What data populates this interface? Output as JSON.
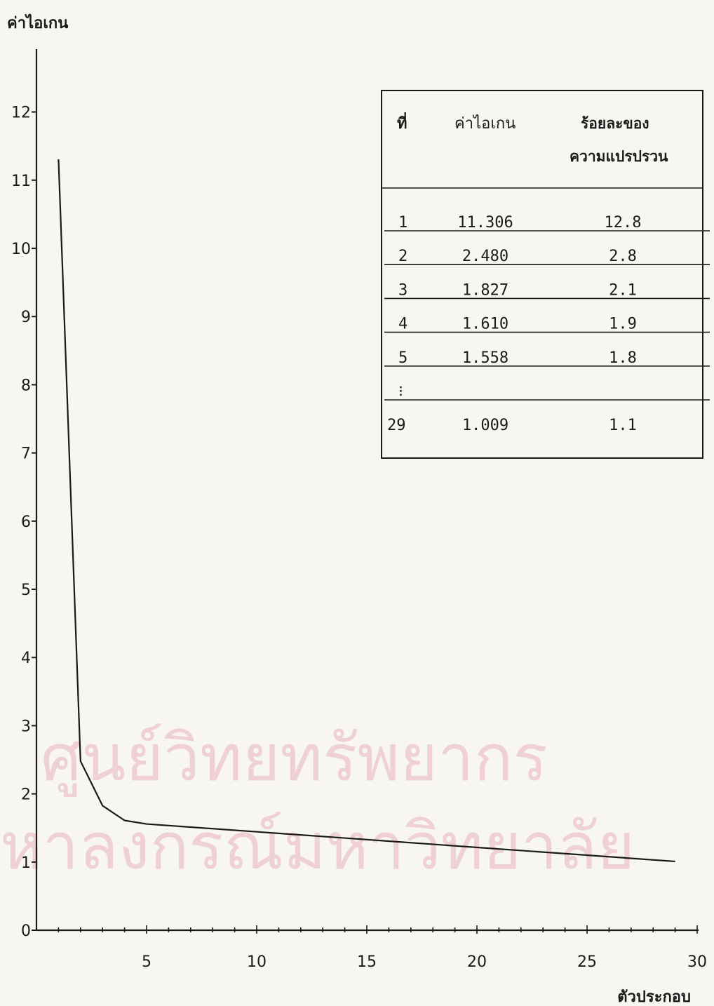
{
  "watermark": {
    "line1": "ศูนย์วิทยทรัพยากร",
    "line2": "หาลงกรณ์มหาวิทยาลัย"
  },
  "chart_data": {
    "type": "line",
    "title": "",
    "ylabel": "ค่าไอเกน",
    "xlabel": "ตัวประกอบ",
    "xlim": [
      0,
      30
    ],
    "ylim": [
      0,
      12
    ],
    "xticks": [
      5,
      10,
      15,
      20,
      25,
      30
    ],
    "yticks": [
      0,
      1,
      2,
      3,
      4,
      5,
      6,
      7,
      8,
      9,
      10,
      11,
      12
    ],
    "grid": false,
    "series": [
      {
        "x": [
          1,
          2,
          3,
          4,
          5,
          29
        ],
        "values": [
          11.306,
          2.48,
          1.827,
          1.61,
          1.558,
          1.009
        ]
      }
    ],
    "table": {
      "headers": [
        "ที่",
        "ค่าไอเกน",
        "ร้อยละของ",
        "ความแปรปรวน"
      ],
      "rows": [
        [
          "1",
          "11.306",
          "12.8"
        ],
        [
          "2",
          "2.480",
          "2.8"
        ],
        [
          "3",
          "1.827",
          "2.1"
        ],
        [
          "4",
          "1.610",
          "1.9"
        ],
        [
          "5",
          "1.558",
          "1.8"
        ],
        [
          "⁝",
          "",
          ""
        ],
        [
          "29",
          "1.009",
          "1.1"
        ]
      ]
    }
  }
}
